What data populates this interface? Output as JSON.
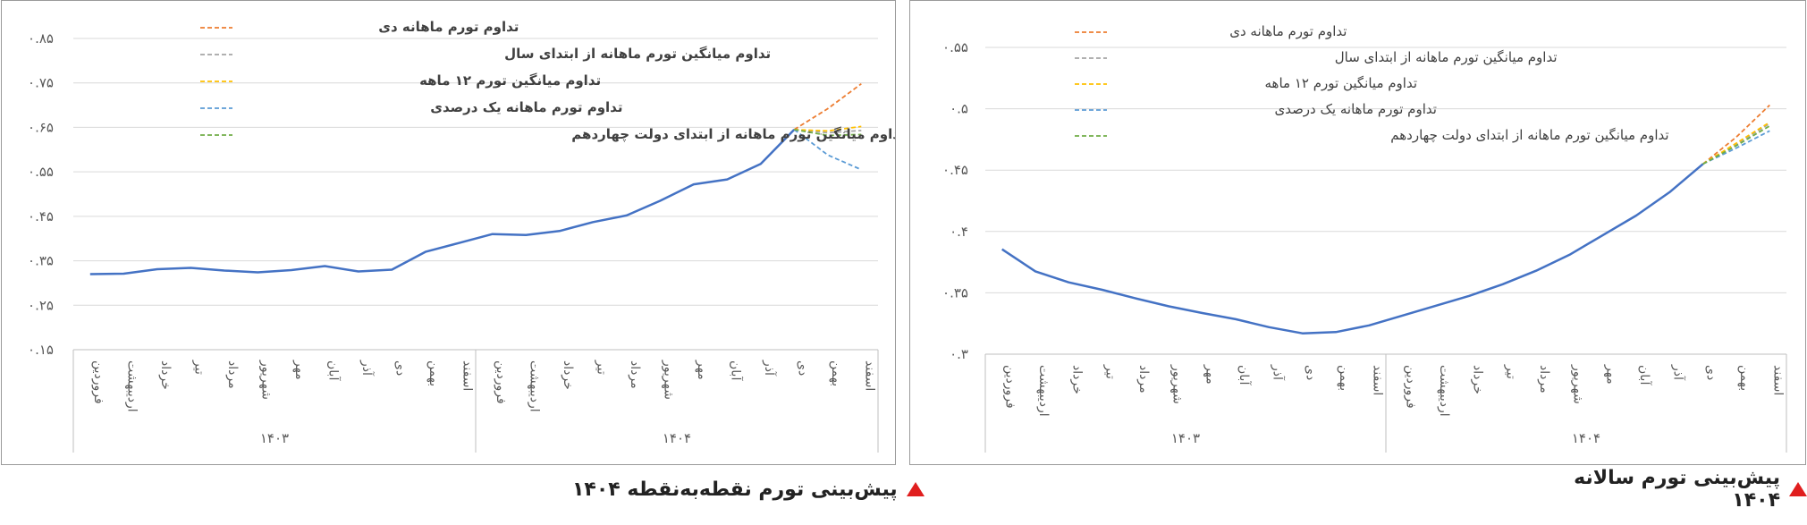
{
  "chart_data": [
    {
      "type": "line",
      "title": "پیش‌بینی تورم نقطه‌به‌نقطه ۱۴۰۴",
      "xlabel": "",
      "ylabel": "",
      "ylim": [
        0.15,
        0.85
      ],
      "yticks": [
        0.15,
        0.25,
        0.35,
        0.45,
        0.55,
        0.65,
        0.75,
        0.85
      ],
      "ytick_labels": [
        "۰.۱۵",
        "۰.۲۵",
        "۰.۳۵",
        "۰.۴۵",
        "۰.۵۵",
        "۰.۶۵",
        "۰.۷۵",
        "۰.۸۵"
      ],
      "categories": [
        "فروردین",
        "اردیبهشت",
        "خرداد",
        "تیر",
        "مرداد",
        "شهریور",
        "مهر",
        "آبان",
        "آذر",
        "دی",
        "بهمن",
        "اسفند",
        "فروردین",
        "اردیبهشت",
        "خرداد",
        "تیر",
        "مرداد",
        "شهریور",
        "مهر",
        "آبان",
        "آذر",
        "دی",
        "بهمن",
        "اسفند"
      ],
      "groups": [
        {
          "label": "۱۴۰۳",
          "start": 0,
          "end": 11
        },
        {
          "label": "۱۴۰۴",
          "start": 12,
          "end": 23
        }
      ],
      "grid": true,
      "legend_position": "top-left",
      "series": [
        {
          "name": "actual",
          "color": "#4472c4",
          "style": "solid",
          "legend": false,
          "values": [
            0.32,
            0.321,
            0.331,
            0.334,
            0.328,
            0.324,
            0.329,
            0.338,
            0.326,
            0.33,
            0.37,
            0.39,
            0.41,
            0.408,
            0.417,
            0.437,
            0.452,
            0.485,
            0.522,
            0.533,
            0.568,
            0.645,
            null,
            null
          ]
        },
        {
          "name": "تداوم تورم ماهانه دی",
          "color": "#ed7d31",
          "style": "dashed",
          "legend": true,
          "values": [
            null,
            null,
            null,
            null,
            null,
            null,
            null,
            null,
            null,
            null,
            null,
            null,
            null,
            null,
            null,
            null,
            null,
            null,
            null,
            null,
            null,
            0.645,
            0.692,
            0.748
          ]
        },
        {
          "name": "تداوم میانگین تورم ماهانه از ابتدای سال",
          "color": "#a5a5a5",
          "style": "dashed",
          "legend": true,
          "values": [
            null,
            null,
            null,
            null,
            null,
            null,
            null,
            null,
            null,
            null,
            null,
            null,
            null,
            null,
            null,
            null,
            null,
            null,
            null,
            null,
            null,
            0.645,
            0.638,
            0.643
          ]
        },
        {
          "name": "تداوم میانگین تورم ۱۲ ماهه",
          "color": "#ffc000",
          "style": "dashed",
          "legend": true,
          "values": [
            null,
            null,
            null,
            null,
            null,
            null,
            null,
            null,
            null,
            null,
            null,
            null,
            null,
            null,
            null,
            null,
            null,
            null,
            null,
            null,
            null,
            0.645,
            0.642,
            0.652
          ]
        },
        {
          "name": "تداوم تورم ماهانه یک درصدی",
          "color": "#5b9bd5",
          "style": "dashed",
          "legend": true,
          "values": [
            null,
            null,
            null,
            null,
            null,
            null,
            null,
            null,
            null,
            null,
            null,
            null,
            null,
            null,
            null,
            null,
            null,
            null,
            null,
            null,
            null,
            0.645,
            0.588,
            0.555
          ]
        },
        {
          "name": "تداوم میانگین تورم ماهانه از ابتدای دولت چهاردهم",
          "color": "#70ad47",
          "style": "dashed",
          "legend": true,
          "values": [
            null,
            null,
            null,
            null,
            null,
            null,
            null,
            null,
            null,
            null,
            null,
            null,
            null,
            null,
            null,
            null,
            null,
            null,
            null,
            null,
            null,
            0.645,
            0.632,
            0.634
          ]
        }
      ]
    },
    {
      "type": "line",
      "title": "پیش‌بینی تورم سالانه ۱۴۰۴",
      "xlabel": "",
      "ylabel": "",
      "ylim": [
        0.3,
        0.55
      ],
      "yticks": [
        0.3,
        0.35,
        0.4,
        0.45,
        0.5,
        0.55
      ],
      "ytick_labels": [
        "۰.۳",
        "۰.۳۵",
        "۰.۴",
        "۰.۴۵",
        "۰.۵",
        "۰.۵۵"
      ],
      "categories": [
        "فروردین",
        "اردیبهشت",
        "خرداد",
        "تیر",
        "مرداد",
        "شهریور",
        "مهر",
        "آبان",
        "آذر",
        "دی",
        "بهمن",
        "اسفند",
        "فروردین",
        "اردیبهشت",
        "خرداد",
        "تیر",
        "مرداد",
        "شهریور",
        "مهر",
        "آبان",
        "آذر",
        "دی",
        "بهمن",
        "اسفند"
      ],
      "groups": [
        {
          "label": "۱۴۰۳",
          "start": 0,
          "end": 11
        },
        {
          "label": "۱۴۰۴",
          "start": 12,
          "end": 23
        }
      ],
      "grid": true,
      "legend_position": "top-left",
      "series": [
        {
          "name": "actual",
          "color": "#4472c4",
          "style": "solid",
          "legend": false,
          "values": [
            0.3855,
            0.3675,
            0.3585,
            0.3525,
            0.3455,
            0.339,
            0.3335,
            0.3285,
            0.322,
            0.317,
            0.318,
            0.3235,
            0.3315,
            0.3395,
            0.3475,
            0.357,
            0.368,
            0.381,
            0.397,
            0.413,
            0.432,
            0.455,
            null,
            null
          ]
        },
        {
          "name": "تداوم تورم ماهانه دی",
          "color": "#ed7d31",
          "style": "dashed",
          "legend": true,
          "values": [
            null,
            null,
            null,
            null,
            null,
            null,
            null,
            null,
            null,
            null,
            null,
            null,
            null,
            null,
            null,
            null,
            null,
            null,
            null,
            null,
            null,
            0.455,
            0.477,
            0.503
          ]
        },
        {
          "name": "تداوم میانگین تورم ماهانه از ابتدای سال",
          "color": "#a5a5a5",
          "style": "dashed",
          "legend": true,
          "values": [
            null,
            null,
            null,
            null,
            null,
            null,
            null,
            null,
            null,
            null,
            null,
            null,
            null,
            null,
            null,
            null,
            null,
            null,
            null,
            null,
            null,
            0.455,
            0.471,
            0.488
          ]
        },
        {
          "name": "تداوم میانگین تورم ۱۲ ماهه",
          "color": "#ffc000",
          "style": "dashed",
          "legend": true,
          "values": [
            null,
            null,
            null,
            null,
            null,
            null,
            null,
            null,
            null,
            null,
            null,
            null,
            null,
            null,
            null,
            null,
            null,
            null,
            null,
            null,
            null,
            0.455,
            0.472,
            0.489
          ]
        },
        {
          "name": "تداوم تورم ماهانه یک درصدی",
          "color": "#5b9bd5",
          "style": "dashed",
          "legend": true,
          "values": [
            null,
            null,
            null,
            null,
            null,
            null,
            null,
            null,
            null,
            null,
            null,
            null,
            null,
            null,
            null,
            null,
            null,
            null,
            null,
            null,
            null,
            0.455,
            0.468,
            0.482
          ]
        },
        {
          "name": "تداوم میانگین تورم ماهانه از ابتدای  دولت چهاردهم",
          "color": "#70ad47",
          "style": "dashed",
          "legend": true,
          "values": [
            null,
            null,
            null,
            null,
            null,
            null,
            null,
            null,
            null,
            null,
            null,
            null,
            null,
            null,
            null,
            null,
            null,
            null,
            null,
            null,
            null,
            0.455,
            0.47,
            0.486
          ]
        }
      ]
    }
  ]
}
